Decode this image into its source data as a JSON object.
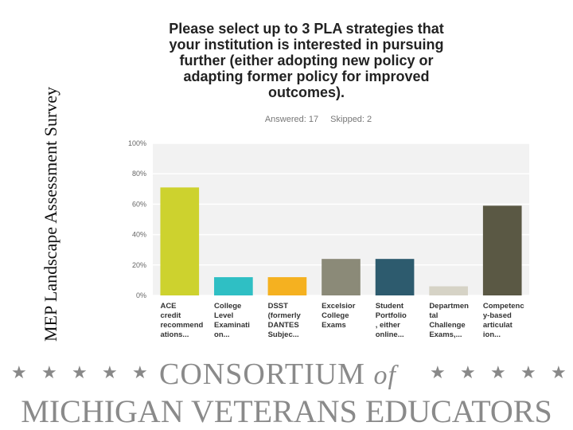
{
  "side_title": "MEP Landscape Assessment Survey",
  "question": "Please select up to 3 PLA strategies that your institution is interested in pursuing further (either adopting new policy or adapting former policy for improved outcomes).",
  "answered": "Answered: 17",
  "skipped": "Skipped: 2",
  "footer": {
    "consortium": "CONSORTIUM",
    "of": "of",
    "org_line": "MICHIGAN VETERANS EDUCATORS"
  },
  "chart_data": {
    "type": "bar",
    "ylabel": "",
    "xlabel": "",
    "ylim": [
      0,
      100
    ],
    "yticks": [
      "0%",
      "20%",
      "40%",
      "60%",
      "80%",
      "100%"
    ],
    "categories": [
      [
        "ACE",
        "credit",
        "recommend",
        "ations..."
      ],
      [
        "College",
        "Level",
        "Examinati",
        "on..."
      ],
      [
        "DSST",
        "(formerly",
        "DANTES",
        "Subjec..."
      ],
      [
        "Excelsior",
        "College",
        "Exams"
      ],
      [
        "Student",
        "Portfolio",
        ", either",
        "online..."
      ],
      [
        "Departmen",
        "tal",
        "Challenge",
        "Exams,..."
      ],
      [
        "Competenc",
        "y-based",
        "articulat",
        "ion..."
      ]
    ],
    "values": [
      71,
      12,
      12,
      24,
      24,
      6,
      59
    ],
    "colors": [
      "#cdd22e",
      "#2fbfc4",
      "#f5b120",
      "#8b8a78",
      "#2d5b6e",
      "#d6d3c6",
      "#5a5844"
    ]
  }
}
